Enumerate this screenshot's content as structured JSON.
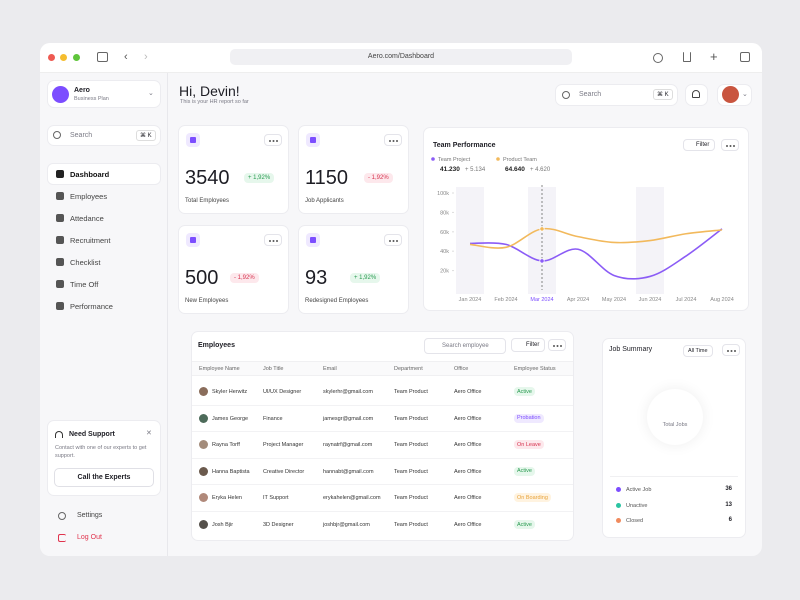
{
  "browser": {
    "url": "Aero.com/Dashboard"
  },
  "sidebar": {
    "brand": {
      "name": "Aero",
      "plan": "Business Plan"
    },
    "search": {
      "placeholder": "Search",
      "shortcut": "⌘ K"
    },
    "nav": [
      "Dashboard",
      "Employees",
      "Attedance",
      "Recruitment",
      "Checklist",
      "Time Off",
      "Performance"
    ],
    "support": {
      "title": "Need Support",
      "text": "Contact with one of our experts to get support.",
      "button": "Call the Experts"
    },
    "settings": "Settings",
    "logout": "Log Out"
  },
  "header": {
    "greeting": "Hi, Devin!",
    "subtitle": "This is your HR report so far",
    "search": {
      "placeholder": "Search",
      "shortcut": "⌘ K"
    }
  },
  "stats": [
    {
      "value": 3540,
      "change": "+ 1,92%",
      "label": "Total Employees"
    },
    {
      "value": 1150,
      "change": "- 1,92%",
      "label": "Job Applicants"
    },
    {
      "value": 500,
      "change": "- 1,92%",
      "label": "New Employees"
    },
    {
      "value": 93,
      "change": "+ 1,92%",
      "label": "Redesigned Employees"
    }
  ],
  "team_performance": {
    "title": "Team Performance",
    "filter": "Filter",
    "chart": {
      "type": "line",
      "categories": [
        "Jan 2024",
        "Feb 2024",
        "Mar 2024",
        "Apr 2024",
        "May 2024",
        "Jun 2024",
        "Jul 2024",
        "Aug 2024"
      ],
      "series": [
        {
          "name": "Team Project",
          "color": "#8b5cf6",
          "total": "41.230",
          "change": "+ 5.134",
          "values": [
            48,
            47,
            30,
            42,
            15,
            14,
            35,
            63
          ]
        },
        {
          "name": "Product Team",
          "color": "#f2b95c",
          "total": "64.640",
          "change": "+ 4.620",
          "values": [
            47,
            44,
            63,
            55,
            49,
            51,
            58,
            62
          ]
        }
      ],
      "ylim": [
        0,
        100
      ],
      "yticks": [
        {
          "value": 100,
          "label": "100k"
        },
        {
          "value": 80,
          "label": "80k"
        },
        {
          "value": 60,
          "label": "60k"
        },
        {
          "value": 40,
          "label": "40k"
        },
        {
          "value": 20,
          "label": "20k"
        }
      ]
    }
  },
  "employees": {
    "title": "Employees",
    "search": "Search employee",
    "filter": "Filter",
    "columns": [
      "Employee Name",
      "Job Title",
      "Email",
      "Department",
      "Office",
      "Employee Status"
    ],
    "rows": [
      [
        "Skyler Herwitz",
        "UI/UX Designer",
        "skylerhr@gmail.com",
        "Team Product",
        "Aero Office",
        "Active"
      ],
      [
        "James George",
        "Finance",
        "jamesgr@gmail.com",
        "Team Product",
        "Aero Office",
        "Probation"
      ],
      [
        "Rayna Torff",
        "Project Manager",
        "raynatrf@gmail.com",
        "Team Product",
        "Aero Office",
        "On Leave"
      ],
      [
        "Hanna Baptista",
        "Creative Director",
        "hannabt@gmail.com",
        "Team Product",
        "Aero Office",
        "Active"
      ],
      [
        "Eryka Helen",
        "IT Support",
        "erykahelen@gmail.com",
        "Team Product",
        "Aero Office",
        "On Boarding"
      ],
      [
        "Josh Bjir",
        "3D Designer",
        "joshbjr@gmail.com",
        "Team Product",
        "Aero Office",
        "Active"
      ]
    ]
  },
  "job_summary": {
    "title": "Job Summary",
    "period": "All Time",
    "center": "Total Jobs",
    "items": [
      {
        "label": "Active Job",
        "value": 36
      },
      {
        "label": "Unactive",
        "value": 13
      },
      {
        "label": "Closed",
        "value": 6
      }
    ]
  }
}
